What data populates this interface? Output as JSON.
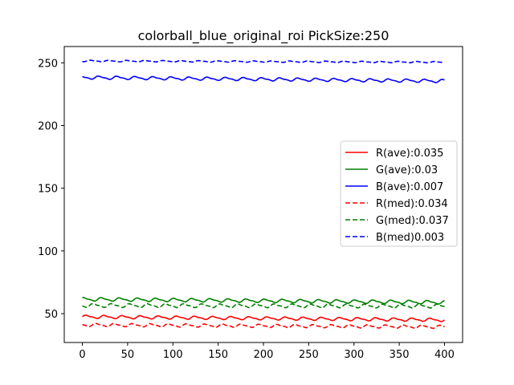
{
  "chart_data": {
    "type": "line",
    "title": "colorball_blue_original_roi   PickSize:250",
    "xlabel": "",
    "ylabel": "",
    "xlim": [
      -20,
      420
    ],
    "ylim": [
      27,
      263
    ],
    "xticks": [
      0,
      50,
      100,
      150,
      200,
      250,
      300,
      350,
      400
    ],
    "yticks": [
      50,
      100,
      150,
      200,
      250
    ],
    "grid": false,
    "legend_position": "center-right",
    "series": [
      {
        "name": "R(ave):0.035",
        "color": "#ff0000",
        "style": "solid",
        "base_start": 47.5,
        "base_end": 45,
        "amplitude": 1.1,
        "period": 20
      },
      {
        "name": "G(ave):0.03",
        "color": "#008000",
        "style": "solid",
        "base_start": 61.5,
        "base_end": 59,
        "amplitude": 1.2,
        "period": 20
      },
      {
        "name": "B(ave):0.007",
        "color": "#0000ff",
        "style": "solid",
        "base_start": 238.3,
        "base_end": 235.5,
        "amplitude": 1.1,
        "period": 20
      },
      {
        "name": "R(med):0.034",
        "color": "#ff0000",
        "style": "dashed",
        "base_start": 41,
        "base_end": 39.5,
        "amplitude": 1.1,
        "period": 20
      },
      {
        "name": "G(med):0.037",
        "color": "#008000",
        "style": "dashed",
        "base_start": 56.5,
        "base_end": 56,
        "amplitude": 1.3,
        "period": 20
      },
      {
        "name": "B(med)0.003",
        "color": "#0000ff",
        "style": "dashed",
        "base_start": 251.5,
        "base_end": 250.5,
        "amplitude": 0.5,
        "period": 20
      }
    ]
  }
}
